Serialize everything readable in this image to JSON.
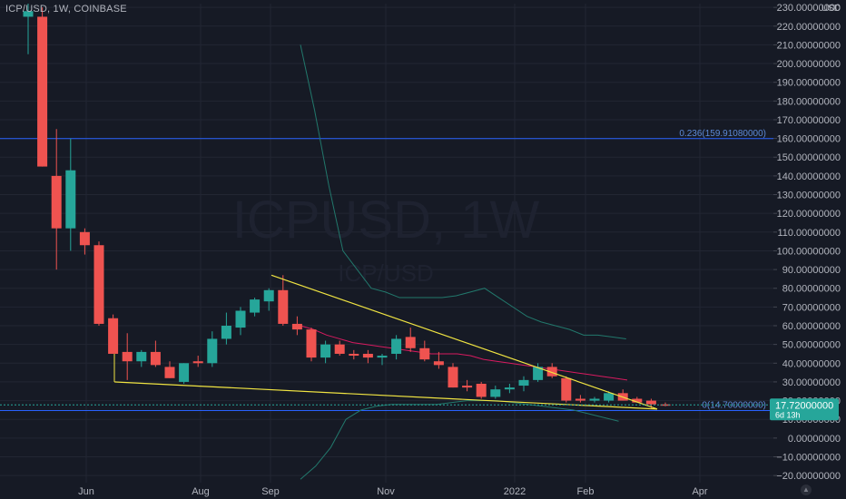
{
  "header": {
    "symbol_line": "ICP/USD, 1W, COINBASE",
    "currency": "USD"
  },
  "watermark": {
    "ticker": "ICPUSD, 1W",
    "pair": "ICP/USD"
  },
  "price_axis": {
    "ticks": [
      230,
      220,
      210,
      200,
      190,
      180,
      170,
      160,
      150,
      140,
      130,
      120,
      110,
      100,
      90,
      80,
      70,
      60,
      50,
      40,
      30,
      20,
      10,
      0,
      -10,
      -20
    ],
    "decimals": 8
  },
  "time_axis": {
    "labels": [
      "Jun",
      "Aug",
      "Sep",
      "Nov",
      "2022",
      "Feb",
      "Apr"
    ]
  },
  "fib_levels": [
    {
      "label": "0.236(159.91080000)",
      "price": 159.9108
    },
    {
      "label": "0(14.70000000)",
      "price": 14.7
    }
  ],
  "last_price": {
    "value": "17.72000000",
    "countdown": "6d 13h",
    "price": 17.72,
    "color": "#26a69a"
  },
  "colors": {
    "up": "#26a69a",
    "down": "#ef5350",
    "trendline": "#f0e442",
    "fib": "#2962ff",
    "ma": "#d81b60",
    "band": "#22786c",
    "grid": "#222633",
    "axis_text": "#b2b5be"
  },
  "chart_data": {
    "type": "candlestick",
    "candles": [
      {
        "o": 225,
        "h": 232,
        "l": 205,
        "c": 228
      },
      {
        "o": 225,
        "h": 230,
        "l": 145,
        "c": 145
      },
      {
        "o": 140,
        "h": 165,
        "l": 90,
        "c": 112
      },
      {
        "o": 112,
        "h": 160,
        "l": 100,
        "c": 143
      },
      {
        "o": 110,
        "h": 112,
        "l": 98,
        "c": 103
      },
      {
        "o": 103,
        "h": 105,
        "l": 60,
        "c": 61
      },
      {
        "o": 64,
        "h": 66,
        "l": 45,
        "c": 45
      },
      {
        "o": 46,
        "h": 56,
        "l": 31,
        "c": 41
      },
      {
        "o": 41,
        "h": 47,
        "l": 38,
        "c": 46
      },
      {
        "o": 46,
        "h": 52,
        "l": 38,
        "c": 39
      },
      {
        "o": 38,
        "h": 41,
        "l": 32,
        "c": 32
      },
      {
        "o": 30,
        "h": 40,
        "l": 29,
        "c": 40
      },
      {
        "o": 41,
        "h": 44,
        "l": 38,
        "c": 40
      },
      {
        "o": 40,
        "h": 57,
        "l": 38,
        "c": 53
      },
      {
        "o": 53,
        "h": 67,
        "l": 50,
        "c": 60
      },
      {
        "o": 59,
        "h": 70,
        "l": 55,
        "c": 68
      },
      {
        "o": 67,
        "h": 75,
        "l": 65,
        "c": 74
      },
      {
        "o": 73,
        "h": 80,
        "l": 68,
        "c": 79
      },
      {
        "o": 79,
        "h": 87,
        "l": 60,
        "c": 61
      },
      {
        "o": 61,
        "h": 65,
        "l": 55,
        "c": 58
      },
      {
        "o": 58,
        "h": 59,
        "l": 41,
        "c": 43
      },
      {
        "o": 43,
        "h": 52,
        "l": 40,
        "c": 50
      },
      {
        "o": 50,
        "h": 52,
        "l": 44,
        "c": 45
      },
      {
        "o": 45,
        "h": 47,
        "l": 42,
        "c": 44
      },
      {
        "o": 45,
        "h": 47,
        "l": 40,
        "c": 43
      },
      {
        "o": 43,
        "h": 45,
        "l": 39,
        "c": 44
      },
      {
        "o": 45,
        "h": 55,
        "l": 42,
        "c": 53
      },
      {
        "o": 54,
        "h": 59,
        "l": 46,
        "c": 48
      },
      {
        "o": 48,
        "h": 52,
        "l": 41,
        "c": 42
      },
      {
        "o": 41,
        "h": 46,
        "l": 37,
        "c": 39
      },
      {
        "o": 38,
        "h": 40,
        "l": 27,
        "c": 27
      },
      {
        "o": 28,
        "h": 31,
        "l": 25,
        "c": 27
      },
      {
        "o": 29,
        "h": 30,
        "l": 21,
        "c": 22
      },
      {
        "o": 22,
        "h": 28,
        "l": 21,
        "c": 26
      },
      {
        "o": 26,
        "h": 29,
        "l": 24,
        "c": 27
      },
      {
        "o": 28,
        "h": 33,
        "l": 25,
        "c": 31
      },
      {
        "o": 31,
        "h": 40,
        "l": 30,
        "c": 38
      },
      {
        "o": 38,
        "h": 40,
        "l": 32,
        "c": 33
      },
      {
        "o": 32,
        "h": 33,
        "l": 19,
        "c": 20
      },
      {
        "o": 21,
        "h": 23,
        "l": 19,
        "c": 20
      },
      {
        "o": 20,
        "h": 22,
        "l": 19,
        "c": 21
      },
      {
        "o": 20,
        "h": 25,
        "l": 19,
        "c": 24
      },
      {
        "o": 24,
        "h": 26,
        "l": 20,
        "c": 20
      },
      {
        "o": 21,
        "h": 22,
        "l": 19,
        "c": 19
      },
      {
        "o": 20,
        "h": 21,
        "l": 16,
        "c": 18
      },
      {
        "o": 18,
        "h": 19,
        "l": 17,
        "c": 17.72
      }
    ],
    "ma_line": [
      60,
      58,
      55,
      53,
      51,
      50,
      49,
      48,
      47,
      46,
      45,
      45,
      45,
      44,
      42,
      41,
      40,
      39,
      38,
      37,
      36,
      35,
      34,
      33,
      32,
      31
    ],
    "band_upper": [
      210,
      175,
      135,
      100,
      90,
      80,
      78,
      75,
      75,
      75,
      75,
      76,
      78,
      80,
      75,
      70,
      65,
      62,
      60,
      58,
      55,
      55,
      54,
      53
    ],
    "band_lower": [
      -22,
      -15,
      -5,
      10,
      15,
      17,
      18,
      18,
      18,
      18,
      19,
      20,
      20,
      20,
      19,
      18,
      17,
      16,
      15,
      13,
      11,
      9
    ],
    "y_range": [
      -22,
      232
    ]
  }
}
